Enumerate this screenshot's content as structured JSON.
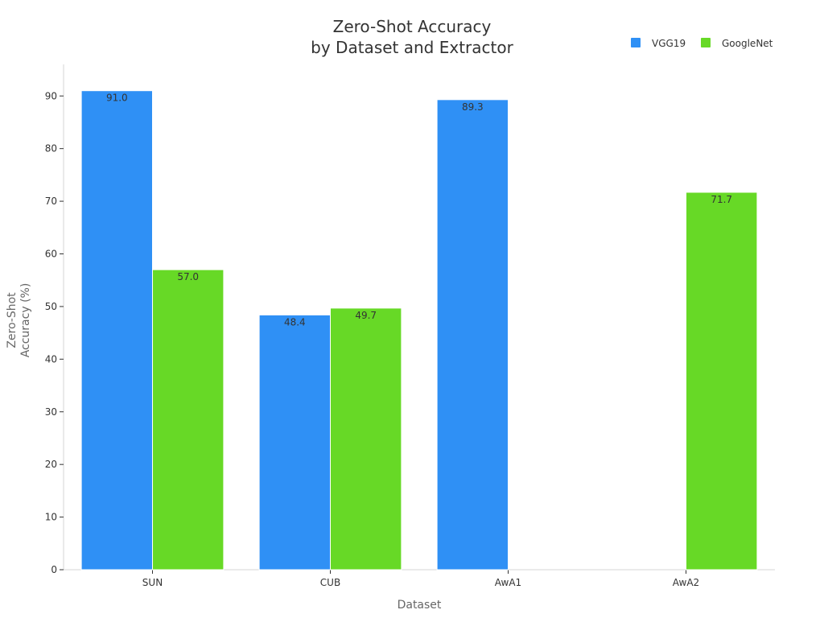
{
  "chart_data": {
    "type": "bar",
    "title": [
      "Zero-Shot Accuracy",
      "by Dataset and Extractor"
    ],
    "xlabel": "Dataset",
    "ylabel": [
      "Zero-Shot",
      "Accuracy (%)"
    ],
    "categories": [
      "SUN",
      "CUB",
      "AwA1",
      "AwA2"
    ],
    "series": [
      {
        "name": "VGG19",
        "color": "#2f90f5",
        "values": [
          91.0,
          48.4,
          89.3,
          null
        ]
      },
      {
        "name": "GoogleNet",
        "color": "#67d926",
        "values": [
          57.0,
          49.7,
          null,
          71.7
        ]
      }
    ],
    "ylim": [
      0,
      96
    ],
    "yticks": [
      0,
      10,
      20,
      30,
      40,
      50,
      60,
      70,
      80,
      90
    ],
    "grid": false,
    "legend_position": "top-right",
    "data_labels": true,
    "value_format": "one-decimal"
  }
}
